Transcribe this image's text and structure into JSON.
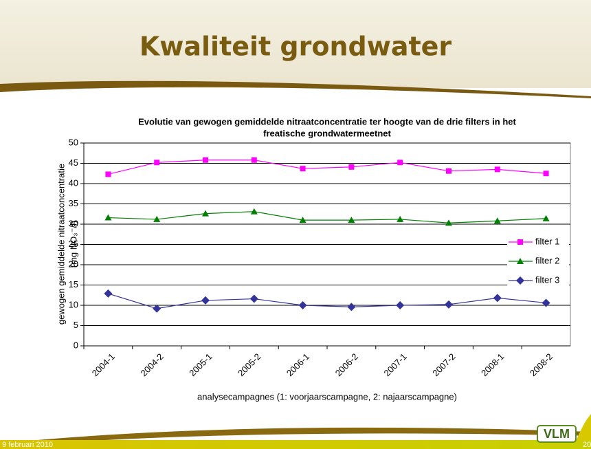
{
  "slide": {
    "title": "Kwaliteit grondwater",
    "footer_date": "9 februari 2010",
    "page_number": "20",
    "logo_text": "VLM"
  },
  "chart_data": {
    "type": "line",
    "title": [
      "Evolutie van gewogen gemiddelde nitraatconcentratie ter hoogte van de drie filters in het",
      "freatische grondwatermeetnet"
    ],
    "x_label": "analysecampagnes (1: voorjaarscampagne, 2: najaarscampagne)",
    "y_label": [
      "gewogen gemiddelde nitraatconcentratie",
      "(mg NO₃⁻/l)"
    ],
    "categories": [
      "2004-1",
      "2004-2",
      "2005-1",
      "2005-2",
      "2006-1",
      "2006-2",
      "2007-1",
      "2007-2",
      "2008-1",
      "2008-2"
    ],
    "series": [
      {
        "name": "filter 1",
        "color": "#ff00ff",
        "marker": "square",
        "values": [
          42.3,
          45.2,
          45.8,
          45.8,
          43.7,
          44.1,
          45.2,
          43.1,
          43.5,
          42.5
        ]
      },
      {
        "name": "filter 2",
        "color": "#008000",
        "marker": "triangle",
        "values": [
          31.6,
          31.2,
          32.6,
          33.1,
          31.0,
          31.0,
          31.2,
          30.3,
          30.8,
          31.4
        ]
      },
      {
        "name": "filter 3",
        "color": "#333399",
        "marker": "diamond",
        "values": [
          12.9,
          9.2,
          11.2,
          11.6,
          10.0,
          9.6,
          10.0,
          10.2,
          11.8,
          10.6
        ]
      }
    ],
    "ylim": [
      0,
      50
    ],
    "yticks": [
      0,
      5,
      10,
      15,
      20,
      25,
      30,
      35,
      40,
      45,
      50
    ],
    "grid": true,
    "legend": "right"
  }
}
